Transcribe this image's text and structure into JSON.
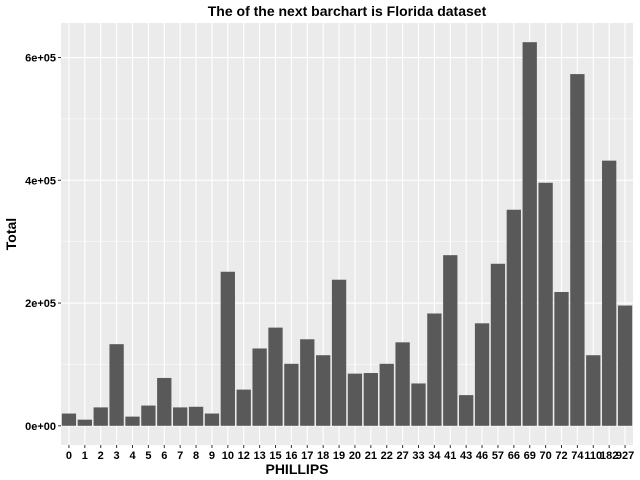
{
  "chart_data": {
    "type": "bar",
    "title": "The of the next barchart is Florida dataset",
    "xlabel": "PHILLIPS",
    "ylabel": "Total",
    "categories": [
      "0",
      "1",
      "2",
      "3",
      "4",
      "5",
      "6",
      "7",
      "8",
      "9",
      "10",
      "12",
      "13",
      "15",
      "16",
      "17",
      "18",
      "19",
      "20",
      "21",
      "22",
      "27",
      "33",
      "34",
      "41",
      "43",
      "46",
      "57",
      "66",
      "69",
      "70",
      "72",
      "74",
      "110",
      "182",
      "927"
    ],
    "values": [
      20000,
      10000,
      30000,
      133000,
      15000,
      33000,
      78000,
      30000,
      31000,
      20000,
      251000,
      59000,
      126000,
      160000,
      101000,
      141000,
      115000,
      238000,
      85000,
      86000,
      101000,
      136000,
      69000,
      183000,
      278000,
      50000,
      167000,
      264000,
      352000,
      625000,
      396000,
      218000,
      573000,
      115000,
      432000,
      196000
    ],
    "x_tick_labels": [
      "0",
      "1",
      "2",
      "3",
      "4",
      "5",
      "6",
      "7",
      "8",
      "9",
      "10",
      "12",
      "13",
      "15",
      "16",
      "17",
      "18",
      "19",
      "20",
      "21",
      "22",
      "27",
      "33",
      "34",
      "41",
      "43",
      "46",
      "57",
      "66",
      "69",
      "70",
      "72",
      "74",
      "110",
      "182",
      "927"
    ],
    "y_ticks": [
      0,
      200000,
      400000,
      600000
    ],
    "y_tick_labels": [
      "0e+00",
      "2e+05",
      "4e+05",
      "6e+05"
    ],
    "ylim": [
      -31250,
      656250
    ],
    "grid": true,
    "colors": {
      "panel": "#EBEBEB",
      "grid": "#FFFFFF",
      "bar": "#595959"
    }
  }
}
